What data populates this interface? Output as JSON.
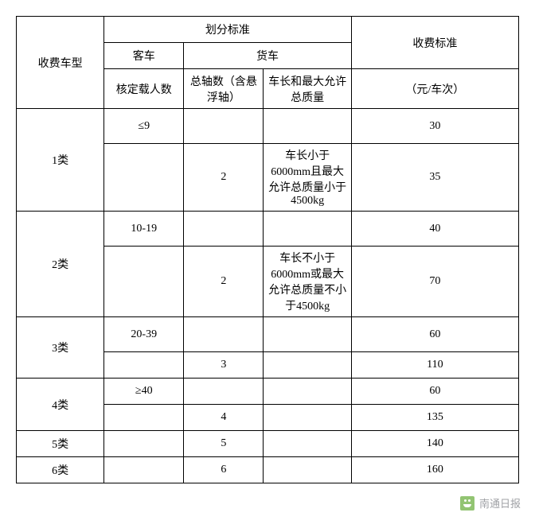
{
  "headers": {
    "vehicle_type": "收费车型",
    "classification": "划分标准",
    "bus": "客车",
    "truck": "货车",
    "approved_passengers": "核定载人数",
    "axle_count": "总轴数（含悬浮轴）",
    "length_weight": "车长和最大允许总质量",
    "fee_standard": "收费标准",
    "fee_unit": "（元/车次）"
  },
  "rows": [
    {
      "type": "1类",
      "pass": "≤9",
      "axle": "",
      "len": "",
      "fee": "30"
    },
    {
      "type": "",
      "pass": "",
      "axle": "2",
      "len": "车长小于6000mm且最大允许总质量小于4500kg",
      "fee": "35"
    },
    {
      "type": "2类",
      "pass": "10-19",
      "axle": "",
      "len": "",
      "fee": "40"
    },
    {
      "type": "",
      "pass": "",
      "axle": "2",
      "len": "车长不小于6000mm或最大允许总质量不小于4500kg",
      "fee": "70"
    },
    {
      "type": "3类",
      "pass": "20-39",
      "axle": "",
      "len": "",
      "fee": "60"
    },
    {
      "type": "",
      "pass": "",
      "axle": "3",
      "len": "",
      "fee": "110"
    },
    {
      "type": "4类",
      "pass": "≥40",
      "axle": "",
      "len": "",
      "fee": "60"
    },
    {
      "type": "",
      "pass": "",
      "axle": "4",
      "len": "",
      "fee": "135"
    },
    {
      "type": "5类",
      "pass": "",
      "axle": "5",
      "len": "",
      "fee": "140"
    },
    {
      "type": "6类",
      "pass": "",
      "axle": "6",
      "len": "",
      "fee": "160"
    }
  ],
  "watermark": "南通日报",
  "style": {
    "font_family": "SimSun",
    "font_size_pt": 10.5,
    "border_color": "#000000",
    "background": "#ffffff",
    "text_color": "#000000",
    "watermark_color": "#8f9196",
    "watermark_icon_bg": "#7fba5a"
  }
}
